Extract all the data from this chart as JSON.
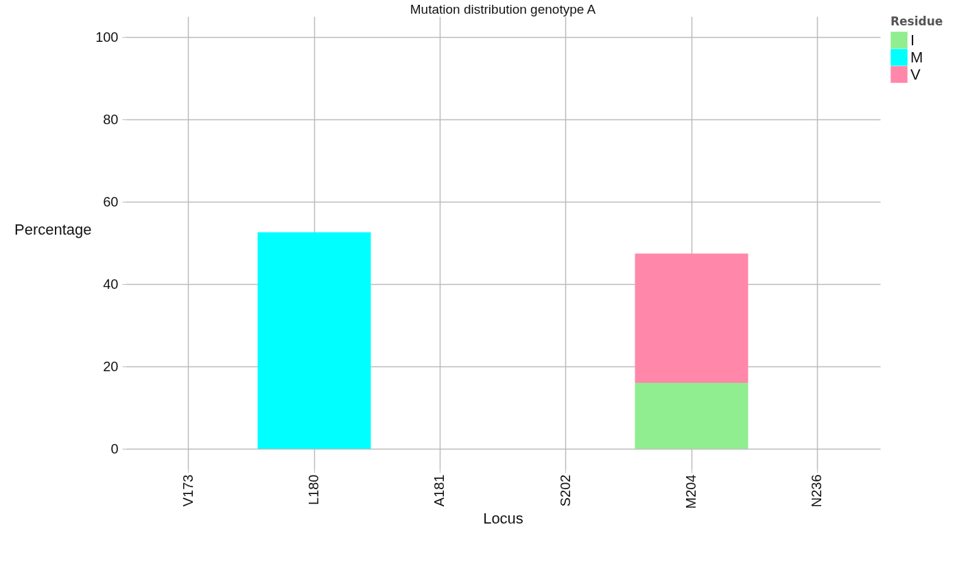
{
  "chart_data": {
    "type": "bar",
    "title": "Mutation distribution genotype A",
    "xlabel": "Locus",
    "ylabel": "Percentage",
    "legend_title": "Residue",
    "categories": [
      "V173",
      "L180",
      "A181",
      "S202",
      "M204",
      "N236"
    ],
    "series": [
      {
        "name": "I",
        "color": "#90ee90",
        "values": [
          null,
          null,
          null,
          null,
          16.0,
          null
        ]
      },
      {
        "name": "M",
        "color": "#00ffff",
        "values": [
          null,
          52.6,
          null,
          null,
          null,
          null
        ]
      },
      {
        "name": "V",
        "color": "#ff88aa",
        "values": [
          null,
          null,
          null,
          null,
          31.4,
          null
        ]
      }
    ],
    "stacked": true,
    "ylim": [
      -5,
      105
    ],
    "yticks": [
      0,
      20,
      40,
      60,
      80,
      100
    ],
    "grid": true,
    "legend": "right"
  }
}
